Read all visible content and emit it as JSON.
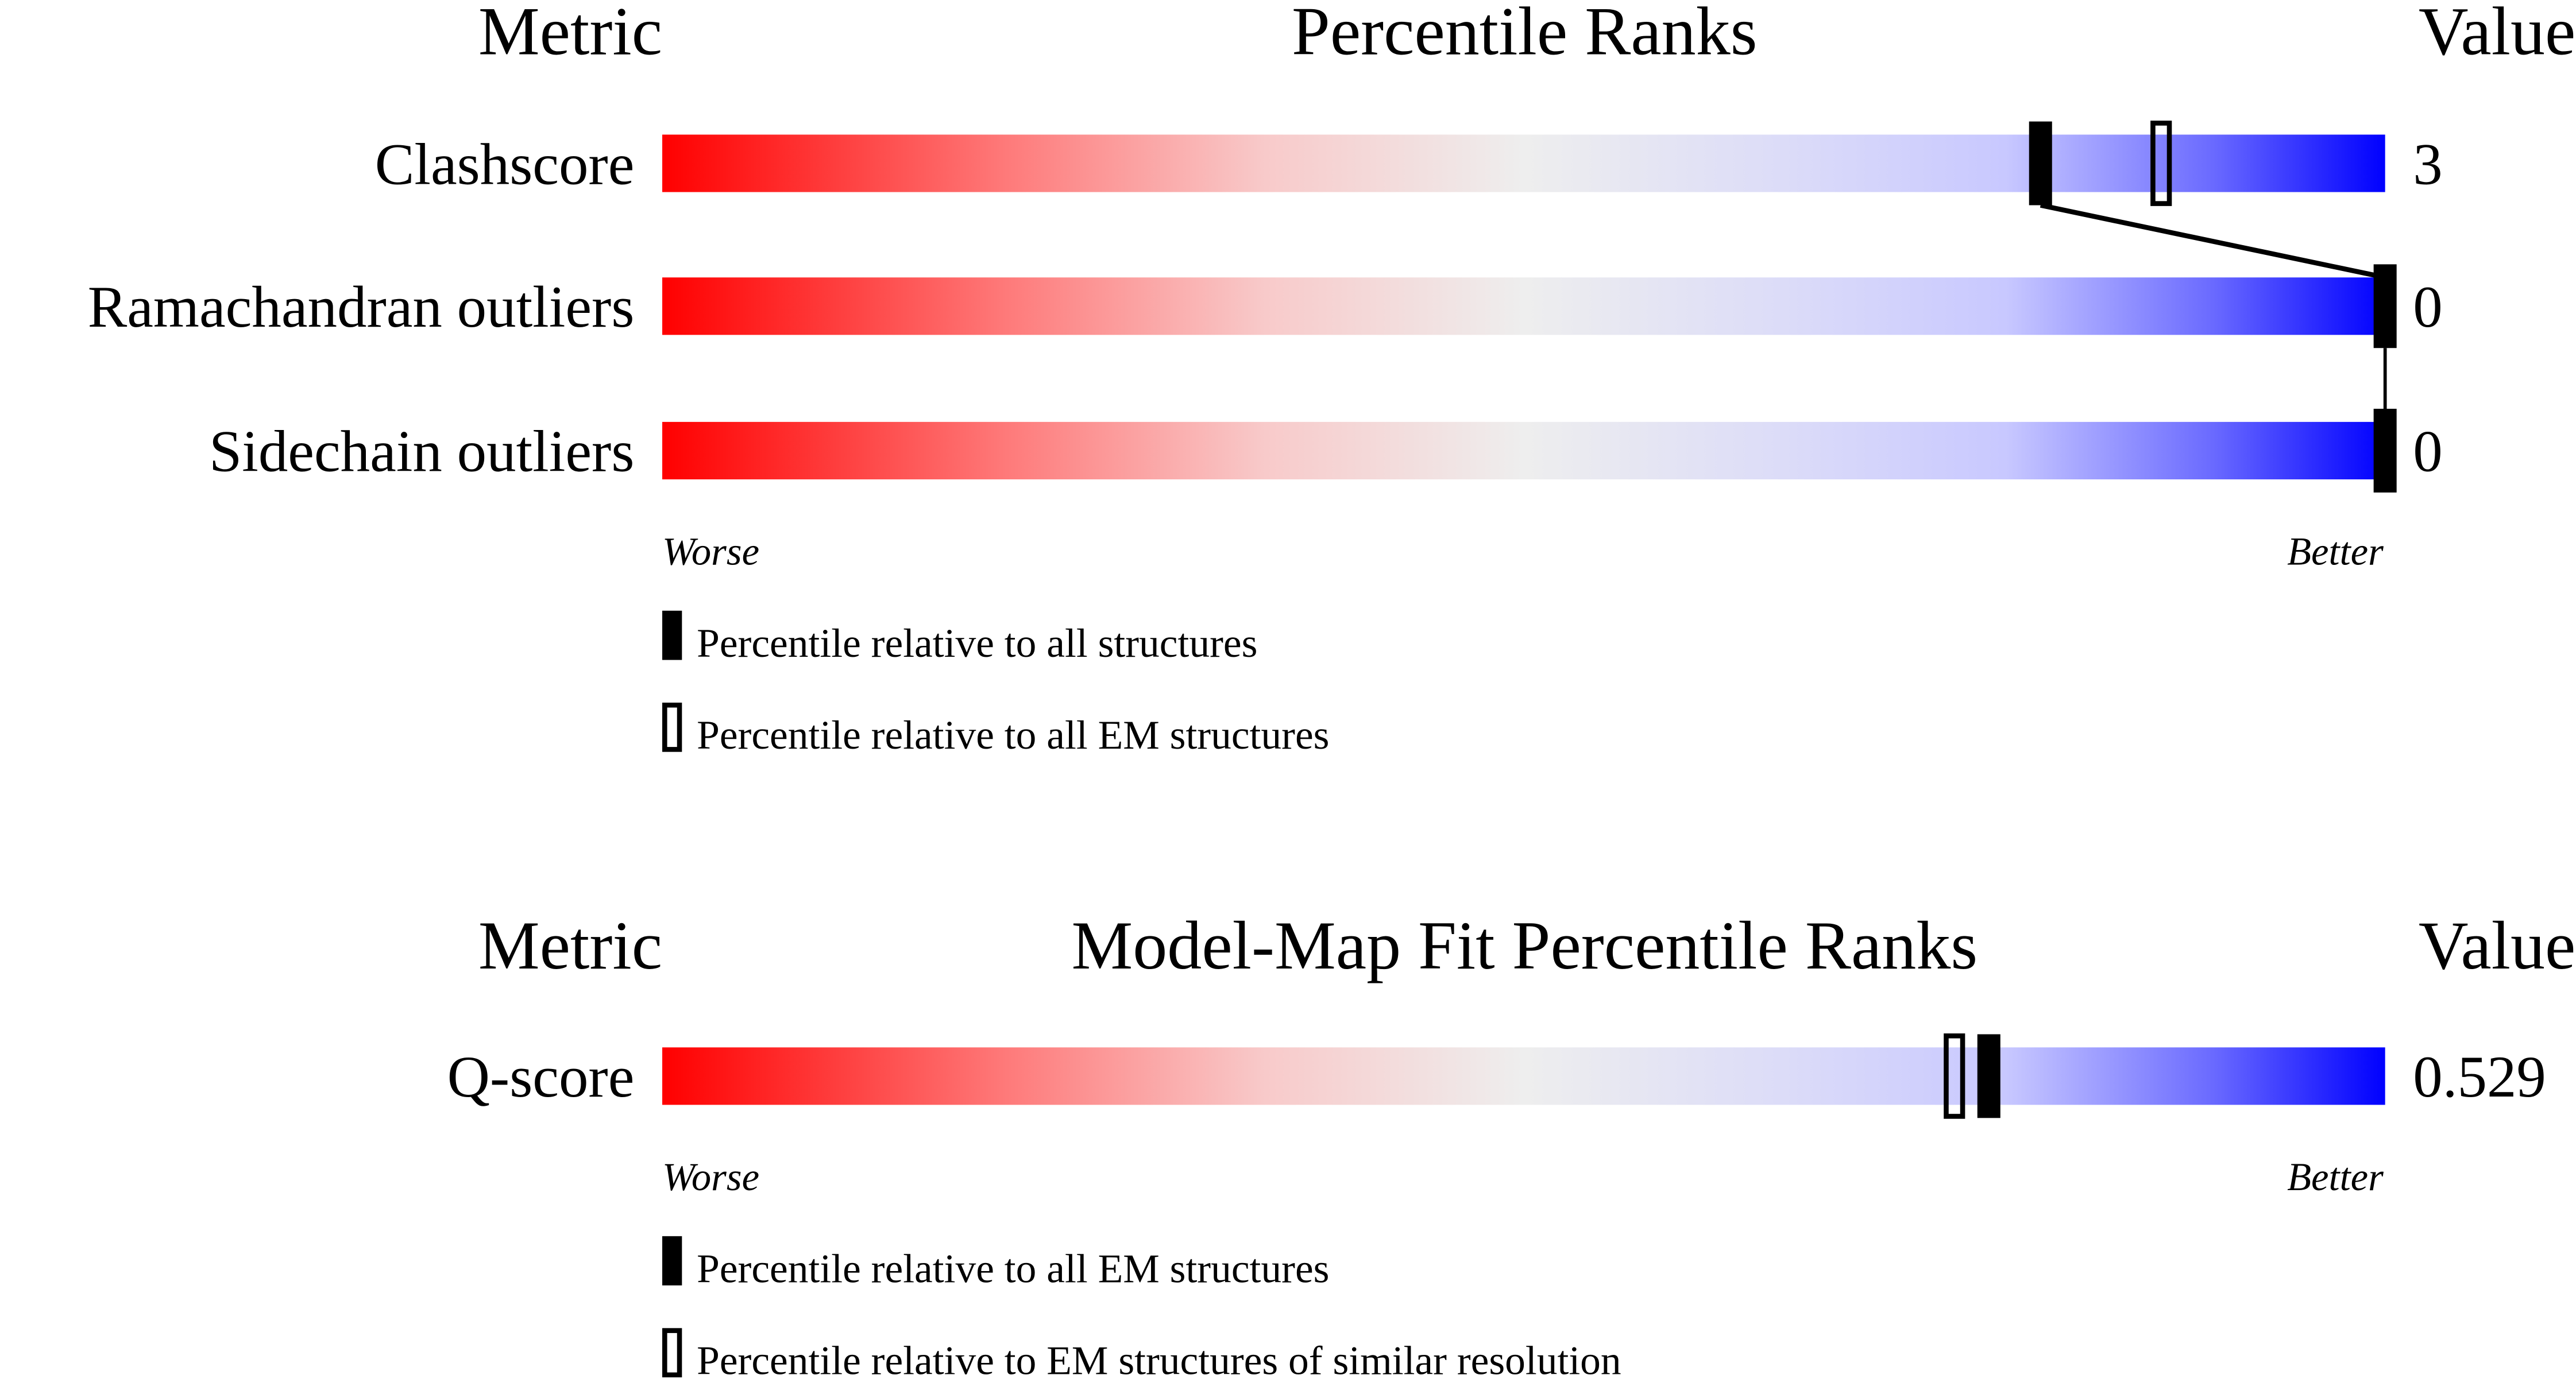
{
  "chart_data": [
    {
      "type": "percentile-bar",
      "headers": {
        "metric": "Metric",
        "title": "Percentile Ranks",
        "value": "Value"
      },
      "xlim": [
        0,
        100
      ],
      "rows": [
        {
          "label": "Clashscore",
          "value": "3",
          "percentile_all": 80,
          "percentile_em": 87
        },
        {
          "label": "Ramachandran outliers",
          "value": "0",
          "percentile_all": 100
        },
        {
          "label": "Sidechain outliers",
          "value": "0",
          "percentile_all": 100
        }
      ],
      "worse_label": "Worse",
      "better_label": "Better",
      "legend": [
        {
          "marker": "filled",
          "text": "Percentile relative to all structures"
        },
        {
          "marker": "open",
          "text": "Percentile relative to all EM structures"
        }
      ]
    },
    {
      "type": "percentile-bar",
      "headers": {
        "metric": "Metric",
        "title": "Model-Map Fit Percentile Ranks",
        "value": "Value"
      },
      "xlim": [
        0,
        100
      ],
      "rows": [
        {
          "label": "Q-score",
          "value": "0.529",
          "percentile_all": 77,
          "percentile_em": 75
        }
      ],
      "worse_label": "Worse",
      "better_label": "Better",
      "legend": [
        {
          "marker": "filled",
          "text": "Percentile relative to all EM structures"
        },
        {
          "marker": "open",
          "text": "Percentile relative to EM structures of similar resolution"
        }
      ]
    }
  ],
  "colors": {
    "worse": "#ff0000",
    "mid": "#eeeeee",
    "better": "#0000ff",
    "marker": "#000000"
  }
}
